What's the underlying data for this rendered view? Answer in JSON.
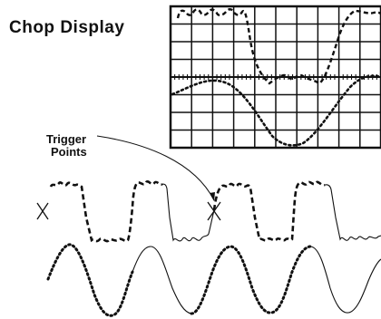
{
  "figure": {
    "title": "Chop Display",
    "annotation": {
      "line1": "Trigger",
      "line2": "Points"
    },
    "oscilloscope": {
      "vertical_divisions": 8,
      "horizontal_divisions": 10
    },
    "colors": {
      "ink": "#111111",
      "background": "#ffffff"
    }
  }
}
